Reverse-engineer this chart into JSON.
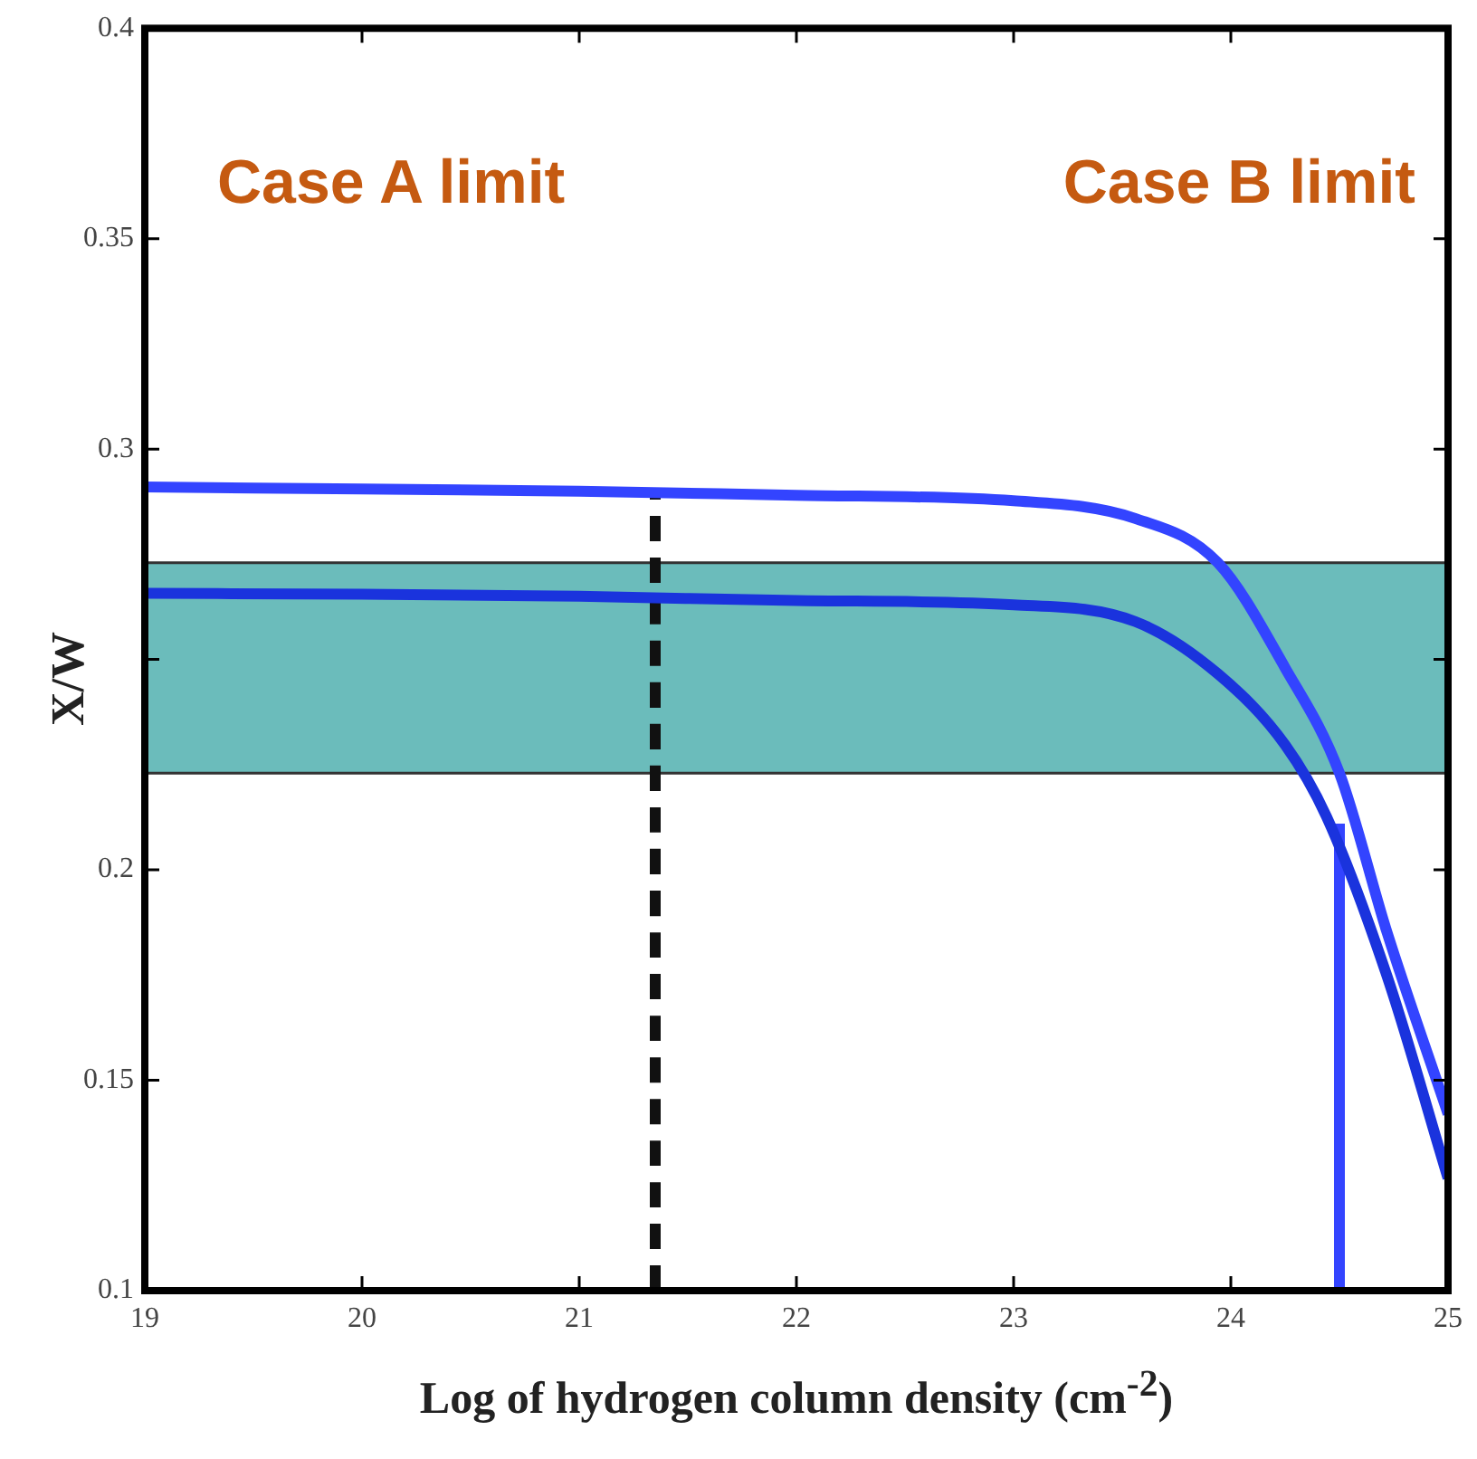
{
  "chart_data": {
    "type": "line",
    "xlabel": "Log of hydrogen column density (cm$^{-2}$)",
    "ylabel": "X/W",
    "annotations": [
      "Case A limit",
      "Case B limit"
    ],
    "xlim": [
      19,
      25
    ],
    "xticks": [
      19,
      20,
      21,
      22,
      23,
      24,
      25
    ],
    "ylim": [
      0.1,
      0.4
    ],
    "yticks": [
      0.1,
      0.15,
      0.2,
      {
        "value": 0.25,
        "label": null
      },
      0.3,
      0.35,
      0.4
    ],
    "grid": false,
    "legend": false,
    "marker": "none",
    "line_style": "solid",
    "bands": [
      {
        "axis": "y",
        "from": 0.223,
        "to": 0.273,
        "color": "#6bbcbb"
      }
    ],
    "series": [
      {
        "color": "#3344ff",
        "x": [
          19,
          20,
          21,
          22,
          23,
          23.56,
          23.94,
          24.25,
          24.5,
          24.72,
          25
        ],
        "values": [
          0.291,
          0.2905,
          0.29,
          0.289,
          0.2877,
          0.2835,
          0.273,
          0.248,
          0.223,
          0.185,
          0.142
        ]
      },
      {
        "color": "#1a33dd",
        "x": [
          19,
          20,
          21,
          22,
          23,
          23.56,
          23.94,
          24.25,
          24.44,
          24.72,
          25
        ],
        "values": [
          0.2657,
          0.2655,
          0.265,
          0.264,
          0.263,
          0.259,
          0.2466,
          0.2297,
          0.2127,
          0.1746,
          0.1267
        ]
      },
      {
        "color": "#3344ff",
        "x": [
          24.5,
          24.5
        ],
        "values": [
          0.211,
          0.1
        ]
      },
      {
        "color": "#111111",
        "line_style": "dashed",
        "x": [
          21.35,
          21.35
        ],
        "values": [
          0.1,
          0.29
        ]
      }
    ]
  }
}
